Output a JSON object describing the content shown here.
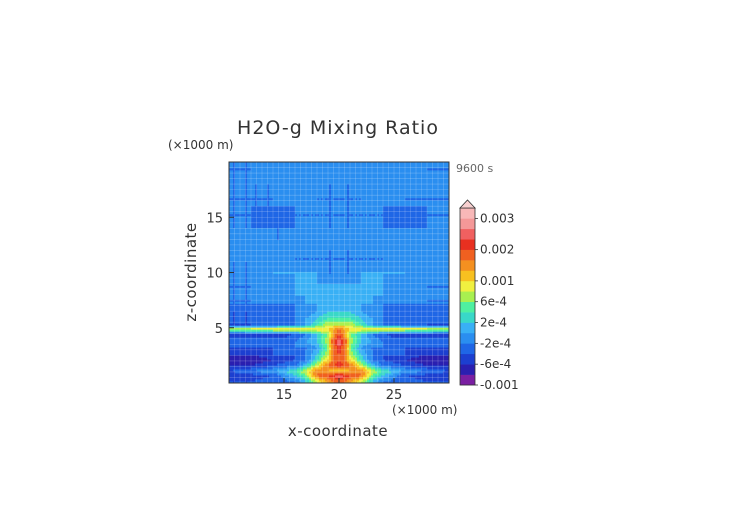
{
  "chart_data": {
    "type": "heatmap",
    "title": "H2O-g Mixing Ratio",
    "xlabel": "x-coordinate",
    "ylabel": "z-coordinate",
    "x_unit": "(×1000 m)",
    "y_unit": "(×1000 m)",
    "time_label": "9600 s",
    "xlim": [
      10,
      30
    ],
    "ylim": [
      0,
      20
    ],
    "x_ticks": [
      15,
      20,
      25
    ],
    "y_ticks": [
      5,
      10,
      15
    ],
    "grid": true,
    "legend": {
      "placement": "right",
      "levels": [
        -0.001,
        -0.0008,
        -0.0006,
        -0.0004,
        -0.0002,
        0,
        0.0002,
        0.0004,
        0.0006,
        0.0008,
        0.001,
        0.0013,
        0.0016,
        0.002,
        0.0023,
        0.0026,
        0.003
      ],
      "labels": [
        "0.003",
        "0.002",
        "0.001",
        "6e-4",
        "2e-4",
        "-2e-4",
        "-6e-4",
        "-0.001"
      ],
      "label_values": [
        0.003,
        0.002,
        0.001,
        0.0006,
        0.0002,
        -0.0002,
        -0.0006,
        -0.001
      ],
      "colors": [
        "#7a1fa2",
        "#2a1fb0",
        "#1c3fd0",
        "#1f66e6",
        "#2a8ef0",
        "#39b0f5",
        "#39d8c8",
        "#4ef0a0",
        "#a8f050",
        "#f0f040",
        "#f7c020",
        "#f49020",
        "#f06020",
        "#e83020",
        "#f06060",
        "#f49898",
        "#f8b8b8"
      ]
    },
    "field": {
      "note_free": true,
      "xs": [
        10,
        12,
        14,
        16,
        17,
        18,
        19,
        19.5,
        20,
        20.5,
        21,
        22,
        23,
        24,
        26,
        28,
        30
      ],
      "zs": [
        0.2,
        0.7,
        1.1,
        1.6,
        2.1,
        2.6,
        3.2,
        3.8,
        4.4,
        4.9,
        5.3,
        5.9,
        6.5,
        7.2,
        8.0,
        9.0,
        10.0,
        11.0,
        12.0,
        13.0,
        14.0,
        15.0,
        16.0,
        17.0,
        18.0,
        19.0,
        20.0
      ],
      "values": [
        [
          -0.0004,
          -0.0004,
          -0.0003,
          -0.0002,
          0.0002,
          0.0008,
          0.0013,
          0.0016,
          0.0018,
          0.0016,
          0.0013,
          0.0008,
          0.0002,
          -0.0002,
          -0.0003,
          -0.0004,
          -0.0004
        ],
        [
          -0.0006,
          -0.0005,
          -0.0004,
          0.0002,
          0.0006,
          0.0016,
          0.002,
          0.0023,
          0.0026,
          0.0023,
          0.002,
          0.0016,
          0.0006,
          0.0002,
          -0.0004,
          -0.0005,
          -0.0006
        ],
        [
          -0.0004,
          -0.0002,
          0.0,
          0.0004,
          0.0008,
          0.0016,
          0.0013,
          0.001,
          0.0008,
          0.001,
          0.0013,
          0.0016,
          0.0008,
          0.0004,
          0.0,
          -0.0002,
          -0.0004
        ],
        [
          -0.0006,
          -0.0006,
          -0.0004,
          -0.0002,
          0.0002,
          0.0008,
          0.0016,
          0.002,
          0.0023,
          0.002,
          0.0016,
          0.0008,
          0.0002,
          -0.0002,
          -0.0004,
          -0.0006,
          -0.0006
        ],
        [
          -0.0008,
          -0.0008,
          -0.0006,
          -0.0004,
          -0.0002,
          0.0004,
          0.001,
          0.0016,
          0.002,
          0.0016,
          0.001,
          0.0004,
          -0.0002,
          -0.0004,
          -0.0006,
          -0.0008,
          -0.0008
        ],
        [
          -0.0006,
          -0.0006,
          -0.0004,
          -0.0004,
          -0.0002,
          0.0002,
          0.0008,
          0.0016,
          0.002,
          0.0016,
          0.0008,
          0.0002,
          -0.0002,
          -0.0004,
          -0.0004,
          -0.0006,
          -0.0006
        ],
        [
          -0.0004,
          -0.0004,
          -0.0004,
          -0.0002,
          -0.0002,
          0.0,
          0.0006,
          0.0016,
          0.0023,
          0.0016,
          0.0006,
          0.0,
          -0.0002,
          -0.0002,
          -0.0004,
          -0.0004,
          -0.0004
        ],
        [
          -0.0002,
          -0.0002,
          -0.0002,
          -0.0002,
          0.0,
          0.0002,
          0.0008,
          0.002,
          0.0026,
          0.002,
          0.0008,
          0.0002,
          0.0,
          -0.0002,
          -0.0002,
          -0.0002,
          -0.0002
        ],
        [
          -0.0006,
          -0.0006,
          -0.0006,
          -0.0004,
          -0.0002,
          0.0002,
          0.0006,
          0.0013,
          0.002,
          0.0013,
          0.0006,
          0.0002,
          -0.0002,
          -0.0004,
          -0.0006,
          -0.0006,
          -0.0006
        ],
        [
          0.0008,
          0.001,
          0.001,
          0.001,
          0.001,
          0.001,
          0.001,
          0.0013,
          0.0016,
          0.0013,
          0.001,
          0.001,
          0.001,
          0.001,
          0.001,
          0.001,
          0.0008
        ],
        [
          -0.0004,
          -0.0004,
          -0.0004,
          -0.0002,
          0.0,
          0.0004,
          0.0008,
          0.0008,
          0.0008,
          0.0008,
          0.0008,
          0.0004,
          0.0,
          -0.0002,
          -0.0004,
          -0.0004,
          -0.0004
        ],
        [
          -0.0004,
          -0.0004,
          -0.0002,
          -0.0002,
          0.0,
          0.0002,
          0.0004,
          0.0004,
          0.0004,
          0.0004,
          0.0004,
          0.0002,
          0.0,
          -0.0002,
          -0.0002,
          -0.0004,
          -0.0004
        ],
        [
          -0.0004,
          -0.0004,
          -0.0004,
          -0.0002,
          -0.0002,
          0.0,
          0.0002,
          0.0002,
          0.0002,
          0.0002,
          0.0002,
          0.0,
          -0.0002,
          -0.0002,
          -0.0004,
          -0.0004,
          -0.0004
        ],
        [
          -0.0002,
          -0.0002,
          -0.0002,
          -0.0002,
          0.0,
          0.0,
          0.0,
          0.0,
          0.0,
          0.0,
          0.0,
          0.0,
          0.0,
          -0.0002,
          -0.0002,
          -0.0002,
          -0.0002
        ],
        [
          -0.0002,
          -0.0002,
          0.0,
          0.0,
          0.0,
          0.0,
          0.0,
          0.0,
          0.0,
          0.0,
          0.0,
          0.0,
          0.0,
          0.0,
          0.0,
          -0.0002,
          -0.0002
        ],
        [
          -0.0002,
          -0.0002,
          -0.0002,
          0.0,
          0.0,
          0.0,
          0.0,
          0.0,
          0.0,
          0.0,
          0.0,
          0.0,
          0.0,
          0.0,
          -0.0002,
          -0.0002,
          -0.0002
        ],
        [
          -0.0002,
          -0.0002,
          0.0,
          0.0,
          0.0,
          0.0,
          -0.0002,
          -0.0002,
          -0.0002,
          -0.0002,
          -0.0002,
          0.0,
          0.0,
          0.0,
          0.0,
          -0.0002,
          -0.0002
        ],
        [
          -0.0002,
          -0.0002,
          -0.0002,
          -0.0002,
          -0.0002,
          -0.0002,
          -0.0002,
          -0.0002,
          -0.0002,
          -0.0002,
          -0.0002,
          -0.0002,
          -0.0002,
          -0.0002,
          -0.0002,
          -0.0002,
          -0.0002
        ],
        [
          -0.0002,
          0.0,
          0.0,
          -0.0002,
          -0.0002,
          -0.0002,
          -0.0002,
          -0.0002,
          -0.0002,
          -0.0002,
          -0.0002,
          -0.0002,
          -0.0002,
          -0.0002,
          0.0,
          0.0,
          -0.0002
        ],
        [
          0.0,
          0.0,
          -0.0002,
          -0.0002,
          0.0,
          0.0,
          0.0,
          0.0,
          0.0,
          0.0,
          0.0,
          0.0,
          0.0,
          -0.0002,
          -0.0002,
          0.0,
          0.0
        ],
        [
          -0.0002,
          -0.0002,
          -0.0002,
          -0.0002,
          -0.0002,
          -0.0002,
          -0.0002,
          -0.0002,
          -0.0002,
          -0.0002,
          -0.0002,
          -0.0002,
          -0.0002,
          -0.0002,
          -0.0002,
          -0.0002,
          -0.0002
        ],
        [
          -0.0002,
          -0.0002,
          -0.0004,
          -0.0002,
          -0.0002,
          -0.0002,
          -0.0002,
          -0.0002,
          -0.0002,
          -0.0002,
          -0.0002,
          -0.0002,
          -0.0002,
          -0.0002,
          -0.0004,
          -0.0002,
          -0.0002
        ],
        [
          -0.0002,
          -0.0002,
          -0.0002,
          -0.0002,
          -0.0002,
          -0.0002,
          -0.0002,
          -0.0002,
          -0.0002,
          -0.0002,
          -0.0002,
          -0.0002,
          -0.0002,
          -0.0002,
          -0.0002,
          -0.0002,
          -0.0002
        ],
        [
          -0.0002,
          -0.0002,
          -0.0002,
          0.0,
          0.0,
          -0.0002,
          -0.0002,
          -0.0002,
          -0.0002,
          -0.0002,
          -0.0002,
          -0.0002,
          0.0,
          0.0,
          -0.0002,
          -0.0002,
          -0.0002
        ],
        [
          -0.0002,
          -0.0002,
          -0.0002,
          -0.0002,
          -0.0002,
          -0.0002,
          -0.0002,
          -0.0002,
          -0.0002,
          -0.0002,
          -0.0002,
          -0.0002,
          -0.0002,
          -0.0002,
          -0.0002,
          -0.0002,
          -0.0002
        ],
        [
          -0.0002,
          -0.0002,
          0.0,
          0.0,
          0.0,
          0.0,
          0.0,
          0.0,
          -0.0002,
          0.0,
          0.0,
          0.0,
          0.0,
          0.0,
          0.0,
          -0.0002,
          -0.0002
        ],
        [
          -0.0002,
          -0.0002,
          -0.0002,
          -0.0002,
          -0.0002,
          -0.0002,
          -0.0002,
          -0.0002,
          -0.0002,
          -0.0002,
          -0.0002,
          -0.0002,
          -0.0002,
          -0.0002,
          -0.0002,
          -0.0002,
          -0.0002
        ]
      ]
    }
  }
}
